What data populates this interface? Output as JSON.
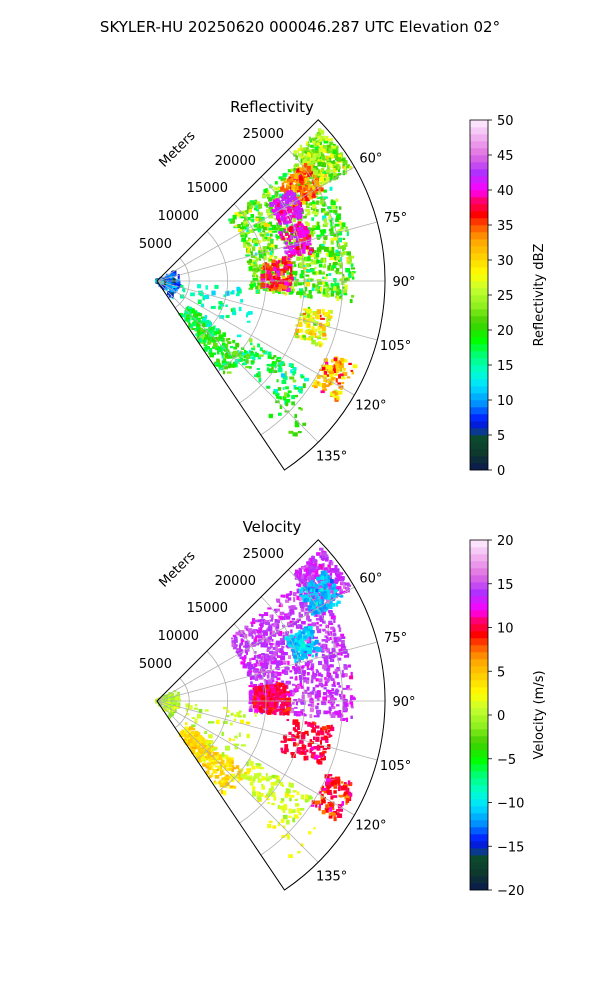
{
  "suptitle": "SKYLER-HU  20250620  000046.287 UTC Elevation 02°",
  "chart_data": [
    {
      "type": "polar-ppi",
      "title": "Reflectivity",
      "range_label": "Meters",
      "theta_range_deg": [
        45,
        146
      ],
      "r_range_m": [
        800,
        30500
      ],
      "r_ticks": [
        5000,
        10000,
        15000,
        20000,
        25000
      ],
      "r_tick_labels": [
        "5000",
        "10000",
        "15000",
        "20000",
        "25000"
      ],
      "theta_ticks": [
        60,
        75,
        90,
        105,
        120,
        135
      ],
      "theta_tick_labels": [
        "60°",
        "75°",
        "90°",
        "105°",
        "120°",
        "135°"
      ],
      "colorbar": {
        "label": "Reflectivity dBZ",
        "vmin": 0,
        "vmax": 50,
        "ticks": [
          0,
          5,
          10,
          15,
          20,
          25,
          30,
          35,
          40,
          45,
          50
        ],
        "tick_labels": [
          "0",
          "5",
          "10",
          "15",
          "20",
          "25",
          "30",
          "35",
          "40",
          "45",
          "50"
        ]
      },
      "echo_clusters": [
        {
          "az": [
            50,
            96
          ],
          "range": [
            13000,
            26500
          ],
          "value": 22,
          "spread": 10,
          "n": 900
        },
        {
          "az": [
            47,
            60
          ],
          "range": [
            25000,
            30000
          ],
          "value": 24,
          "spread": 8,
          "n": 300
        },
        {
          "az": [
            52,
            62
          ],
          "range": [
            21000,
            25500
          ],
          "value": 34,
          "spread": 6,
          "n": 200
        },
        {
          "az": [
            56,
            66
          ],
          "range": [
            18500,
            22000
          ],
          "value": 41,
          "spread": 5,
          "n": 140
        },
        {
          "az": [
            68,
            80
          ],
          "range": [
            18000,
            21500
          ],
          "value": 40,
          "spread": 6,
          "n": 140
        },
        {
          "az": [
            80,
            94
          ],
          "range": [
            14500,
            18500
          ],
          "value": 37,
          "spread": 7,
          "n": 140
        },
        {
          "az": [
            60,
            140
          ],
          "range": [
            800,
            3800
          ],
          "value": 8,
          "spread": 6,
          "n": 120
        },
        {
          "az": [
            128,
            145
          ],
          "range": [
            6000,
            16000
          ],
          "value": 19,
          "spread": 7,
          "n": 260
        },
        {
          "az": [
            122,
            134
          ],
          "range": [
            15000,
            24500
          ],
          "value": 18,
          "spread": 8,
          "n": 110
        },
        {
          "az": [
            100,
            112
          ],
          "range": [
            20000,
            24000
          ],
          "value": 28,
          "spread": 10,
          "n": 110
        },
        {
          "az": [
            113,
            124
          ],
          "range": [
            25000,
            29000
          ],
          "value": 32,
          "spread": 9,
          "n": 110
        },
        {
          "az": [
            95,
            130
          ],
          "range": [
            4000,
            14000
          ],
          "value": 14,
          "spread": 6,
          "n": 50
        },
        {
          "az": [
            128,
            140
          ],
          "range": [
            22000,
            28000
          ],
          "value": 20,
          "spread": 4,
          "n": 20
        }
      ]
    },
    {
      "type": "polar-ppi",
      "title": "Velocity",
      "range_label": "Meters",
      "theta_range_deg": [
        45,
        146
      ],
      "r_range_m": [
        800,
        30500
      ],
      "r_ticks": [
        5000,
        10000,
        15000,
        20000,
        25000
      ],
      "r_tick_labels": [
        "5000",
        "10000",
        "15000",
        "20000",
        "25000"
      ],
      "theta_ticks": [
        60,
        75,
        90,
        105,
        120,
        135
      ],
      "theta_tick_labels": [
        "60°",
        "75°",
        "90°",
        "105°",
        "120°",
        "135°"
      ],
      "colorbar": {
        "label": "Velocity (m/s)",
        "vmin": -20,
        "vmax": 20,
        "ticks": [
          -20,
          -15,
          -10,
          -5,
          0,
          5,
          10,
          15,
          20
        ],
        "tick_labels": [
          "−20",
          "−15",
          "−10",
          "−5",
          "0",
          "5",
          "10",
          "15",
          "20"
        ]
      },
      "echo_clusters": [
        {
          "az": [
            50,
            96
          ],
          "range": [
            13000,
            26500
          ],
          "value": 14,
          "spread": 3,
          "n": 900
        },
        {
          "az": [
            47,
            60
          ],
          "range": [
            25000,
            30000
          ],
          "value": 14,
          "spread": 3,
          "n": 300
        },
        {
          "az": [
            52,
            62
          ],
          "range": [
            24000,
            28500
          ],
          "value": -11,
          "spread": 3,
          "n": 140
        },
        {
          "az": [
            64,
            74
          ],
          "range": [
            19500,
            23000
          ],
          "value": -11,
          "spread": 3,
          "n": 120
        },
        {
          "az": [
            82,
            96
          ],
          "range": [
            13500,
            18000
          ],
          "value": 10,
          "spread": 3,
          "n": 220
        },
        {
          "az": [
            60,
            140
          ],
          "range": [
            800,
            3800
          ],
          "value": 0,
          "spread": 3,
          "n": 120
        },
        {
          "az": [
            128,
            145
          ],
          "range": [
            6000,
            16000
          ],
          "value": 4,
          "spread": 3,
          "n": 260
        },
        {
          "az": [
            122,
            134
          ],
          "range": [
            15000,
            24500
          ],
          "value": 1,
          "spread": 3,
          "n": 110
        },
        {
          "az": [
            98,
            112
          ],
          "range": [
            18000,
            24000
          ],
          "value": 10,
          "spread": 2,
          "n": 120
        },
        {
          "az": [
            113,
            124
          ],
          "range": [
            25000,
            29000
          ],
          "value": 9,
          "spread": 4,
          "n": 110
        },
        {
          "az": [
            95,
            130
          ],
          "range": [
            4000,
            14000
          ],
          "value": 1,
          "spread": 3,
          "n": 50
        },
        {
          "az": [
            128,
            140
          ],
          "range": [
            22000,
            28000
          ],
          "value": 2,
          "spread": 2,
          "n": 20
        }
      ]
    }
  ],
  "colormap": [
    [
      0.0,
      "#0a1850"
    ],
    [
      0.05,
      "#0d3a2c"
    ],
    [
      0.09,
      "#0c4a30"
    ],
    [
      0.11,
      "#0a3a90"
    ],
    [
      0.14,
      "#0010ff"
    ],
    [
      0.19,
      "#0090ff"
    ],
    [
      0.24,
      "#00e0ff"
    ],
    [
      0.28,
      "#00ffd0"
    ],
    [
      0.33,
      "#00ff70"
    ],
    [
      0.37,
      "#00ff00"
    ],
    [
      0.42,
      "#40d000"
    ],
    [
      0.47,
      "#90f020"
    ],
    [
      0.52,
      "#c8ff30"
    ],
    [
      0.56,
      "#ffff00"
    ],
    [
      0.61,
      "#ffd000"
    ],
    [
      0.66,
      "#ffa000"
    ],
    [
      0.7,
      "#ff5000"
    ],
    [
      0.73,
      "#ff0000"
    ],
    [
      0.77,
      "#ff0070"
    ],
    [
      0.8,
      "#ff00ff"
    ],
    [
      0.85,
      "#b030ff"
    ],
    [
      0.9,
      "#e070e0"
    ],
    [
      0.95,
      "#f0b0f0"
    ],
    [
      1.0,
      "#fff0ff"
    ]
  ]
}
